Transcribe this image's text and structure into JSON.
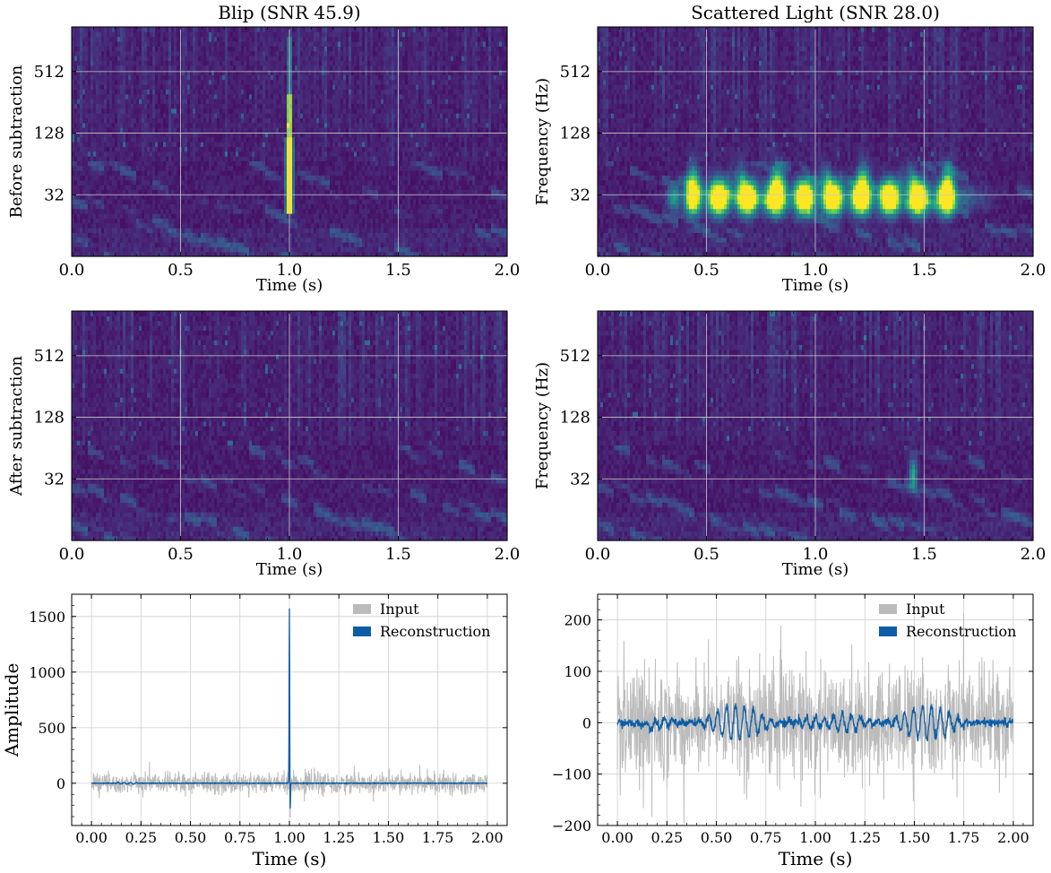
{
  "chart_data": [
    {
      "type": "heatmap",
      "id": "blip-before",
      "title": "Blip  (SNR 45.9)",
      "ylabel": "Before subtraction",
      "xlabel": "Time (s)",
      "xlim": [
        0,
        2
      ],
      "x_ticks": [
        "0.0",
        "0.5",
        "1.0",
        "1.5",
        "2.0"
      ],
      "y_scale": "log2",
      "y_ticks": [
        "32",
        "128",
        "512"
      ],
      "ylim": [
        8,
        1400
      ],
      "colormap": "viridis",
      "features": [
        {
          "kind": "vertical-spike",
          "t": 1.0,
          "f_low": 25,
          "f_high": 1100,
          "intensity": 1.0
        }
      ]
    },
    {
      "type": "heatmap",
      "id": "scatter-before",
      "title": "Scattered Light  (SNR 28.0)",
      "ylabel": "Frequency (Hz)",
      "xlabel": "Time (s)",
      "xlim": [
        0,
        2
      ],
      "x_ticks": [
        "0.0",
        "0.5",
        "1.0",
        "1.5",
        "2.0"
      ],
      "y_scale": "log2",
      "y_ticks": [
        "32",
        "128",
        "512"
      ],
      "ylim": [
        8,
        1400
      ],
      "colormap": "viridis",
      "features": [
        {
          "kind": "band",
          "t_start": 0.45,
          "t_end": 1.6,
          "f_center": 30,
          "intensity": 1.0
        }
      ]
    },
    {
      "type": "heatmap",
      "id": "blip-after",
      "title": "",
      "ylabel": "After subtraction",
      "xlabel": "Time (s)",
      "xlim": [
        0,
        2
      ],
      "x_ticks": [
        "0.0",
        "0.5",
        "1.0",
        "1.5",
        "2.0"
      ],
      "y_scale": "log2",
      "y_ticks": [
        "32",
        "128",
        "512"
      ],
      "ylim": [
        8,
        1400
      ],
      "colormap": "viridis",
      "features": []
    },
    {
      "type": "heatmap",
      "id": "scatter-after",
      "title": "",
      "ylabel": "Frequency (Hz)",
      "xlabel": "Time (s)",
      "xlim": [
        0,
        2
      ],
      "x_ticks": [
        "0.0",
        "0.5",
        "1.0",
        "1.5",
        "2.0"
      ],
      "y_scale": "log2",
      "y_ticks": [
        "32",
        "128",
        "512"
      ],
      "ylim": [
        8,
        1400
      ],
      "colormap": "viridis",
      "features": [
        {
          "kind": "blob",
          "t": 1.45,
          "f": 36,
          "intensity": 0.55
        }
      ]
    },
    {
      "type": "line",
      "id": "blip-timeseries",
      "title": "",
      "xlabel": "Time (s)",
      "ylabel": "Amplitude",
      "xlim": [
        -0.1,
        2.1
      ],
      "ylim": [
        -380,
        1700
      ],
      "x_ticks": [
        "0.00",
        "0.25",
        "0.50",
        "0.75",
        "1.00",
        "1.25",
        "1.50",
        "1.75",
        "2.00"
      ],
      "y_ticks": [
        "0",
        "500",
        "1000",
        "1500"
      ],
      "legend": {
        "position": "top-right",
        "entries": [
          "Input",
          "Reconstruction"
        ]
      },
      "series": [
        {
          "name": "Input",
          "color": "#bbbbbb",
          "noise_amplitude": 80,
          "t_range": [
            0,
            2
          ],
          "spike": {
            "t": 1.0,
            "peak": 1600,
            "trough": -270
          }
        },
        {
          "name": "Reconstruction",
          "color": "#0c5da5",
          "noise_amplitude": 5,
          "t_range": [
            0,
            2
          ],
          "spike": {
            "t": 1.0,
            "peak": 1580,
            "trough": -260
          }
        }
      ]
    },
    {
      "type": "line",
      "id": "scatter-timeseries",
      "title": "",
      "xlabel": "Time (s)",
      "ylabel": "",
      "xlim": [
        -0.1,
        2.1
      ],
      "ylim": [
        -200,
        250
      ],
      "x_ticks": [
        "0.00",
        "0.25",
        "0.50",
        "0.75",
        "1.00",
        "1.25",
        "1.50",
        "1.75",
        "2.00"
      ],
      "y_ticks": [
        "−200",
        "−100",
        "0",
        "100",
        "200"
      ],
      "legend": {
        "position": "top-right",
        "entries": [
          "Input",
          "Reconstruction"
        ]
      },
      "series": [
        {
          "name": "Input",
          "color": "#bbbbbb",
          "noise_amplitude": 90,
          "t_range": [
            0,
            2
          ]
        },
        {
          "name": "Reconstruction",
          "color": "#0c5da5",
          "oscillation": {
            "t_start": 0.15,
            "t_end": 1.9,
            "amplitude": 30,
            "period": 0.045
          }
        }
      ]
    }
  ]
}
